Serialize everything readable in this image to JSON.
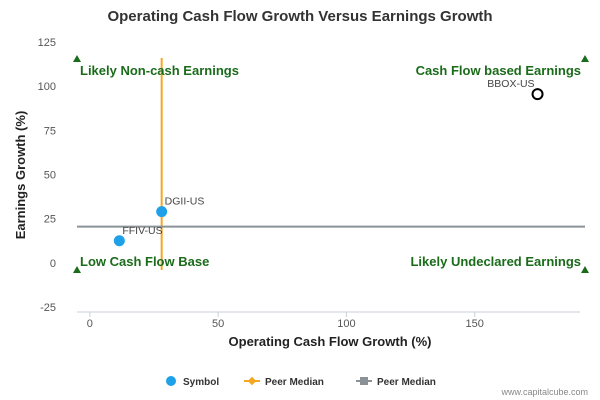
{
  "chart_data": {
    "type": "scatter",
    "title": "Operating Cash Flow Growth Versus Earnings Growth",
    "xlabel": "Operating Cash Flow Growth (%)",
    "ylabel": "Earnings Growth (%)",
    "xlim": [
      -5,
      193
    ],
    "ylim": [
      -25,
      125
    ],
    "x_ticks": [
      0,
      50,
      100,
      150
    ],
    "y_ticks": [
      -25,
      0,
      25,
      50,
      75,
      100,
      125
    ],
    "grid": false,
    "points": [
      {
        "label": "FFIV-US",
        "x": 11.5,
        "y": 12.5,
        "style": "filled"
      },
      {
        "label": "DGII-US",
        "x": 28,
        "y": 29,
        "style": "filled"
      },
      {
        "label": "BBOX-US",
        "x": 174.5,
        "y": 95.5,
        "style": "hollow"
      }
    ],
    "peer_median_x": 28,
    "peer_median_y": 20.5,
    "quadrant_labels": {
      "top_left": "Likely Non-cash Earnings",
      "top_right": "Cash Flow based Earnings",
      "bottom_left": "Low Cash Flow Base",
      "bottom_right": "Likely Undeclared Earnings"
    },
    "legend": [
      {
        "name": "Symbol",
        "color": "#1ea1e8"
      },
      {
        "name": "Peer Median",
        "color": "#f5a623"
      },
      {
        "name": "Peer Median",
        "color": "#8a9298"
      }
    ],
    "legend_position": "bottom-center",
    "credit": "www.capitalcube.com",
    "colors": {
      "point": "#1ea1e8",
      "vline": "#f5a623",
      "hline": "#8a9298",
      "quadrant": "#1a6b1a"
    }
  }
}
